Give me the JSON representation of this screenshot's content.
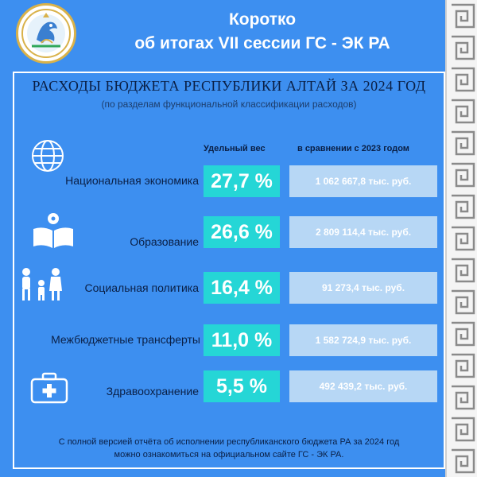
{
  "header": {
    "title_line1": "Коротко",
    "title_line2": "об итогах VII сессии ГС - ЭК РА"
  },
  "report": {
    "title": "РАСХОДЫ БЮДЖЕТА РЕСПУБЛИКИ АЛТАЙ ЗА 2024 ГОД",
    "subtitle": "(по разделам функциональной классификации расходов)",
    "col_share": "Удельный вес",
    "col_compare": "в сравнении с 2023 годом",
    "rows": [
      {
        "label": "Национальная экономика",
        "share": "27,7 %",
        "compare": "1 062 667,8 тыс. руб.",
        "icon": "globe-icon"
      },
      {
        "label": "Образование",
        "share": "26,6 %",
        "compare": "2 809 114,4 тыс. руб.",
        "icon": "open-book-icon"
      },
      {
        "label": "Социальная политика",
        "share": "16,4 %",
        "compare": "91 273,4 тыс. руб.",
        "icon": "family-icon"
      },
      {
        "label": "Межбюджетные трансферты",
        "share": "11,0 %",
        "compare": "1 582 724,9 тыс. руб.",
        "icon": "none"
      },
      {
        "label": "Здравоохранение",
        "share": "5,5 %",
        "compare": "492 439,2 тыс. руб.",
        "icon": "medical-kit-icon"
      }
    ],
    "footnote_line1": "С полной версией отчёта об исполнении республиканского бюджета РА за 2024 год",
    "footnote_line2": "можно ознакомиться на официальном сайте ГС - ЭК РА."
  },
  "colors": {
    "background": "#3d8ff0",
    "value_box": "#25d6d6",
    "compare_box": "#b7d7f5",
    "plus_sign": "#e01f25"
  }
}
